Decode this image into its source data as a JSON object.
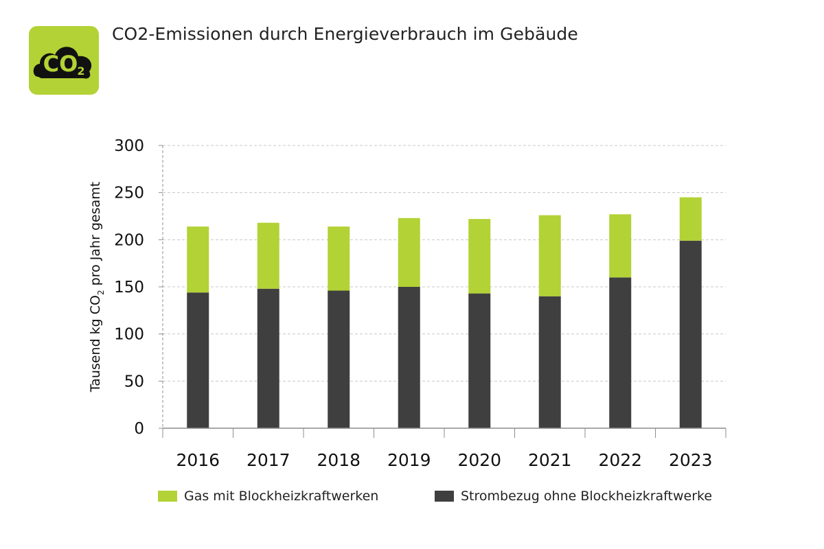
{
  "title": "CO2-Emissionen durch Energieverbrauch im Gebäude",
  "logo": {
    "text": "CO",
    "subscript": "2"
  },
  "colors": {
    "green": "#b2d235",
    "dark": "#3f3f3f",
    "grid": "#c8c8c8",
    "axis": "#8c8c8c"
  },
  "chart_data": {
    "type": "bar",
    "stacked": true,
    "categories": [
      "2016",
      "2017",
      "2018",
      "2019",
      "2020",
      "2021",
      "2022",
      "2023"
    ],
    "series": [
      {
        "name": "Strombezug ohne Blockheizkraftwerke",
        "color": "#3f3f3f",
        "values": [
          144,
          148,
          146,
          150,
          143,
          140,
          160,
          199
        ]
      },
      {
        "name": "Gas mit Blockheizkraftwerken",
        "color": "#b2d235",
        "values": [
          70,
          70,
          68,
          73,
          79,
          86,
          67,
          46
        ]
      }
    ],
    "ylabel": {
      "main": "Tausend kg CO",
      "sub": "2",
      "rest": " pro Jahr gesamt"
    },
    "ylim": [
      0,
      300
    ],
    "yticks": [
      0,
      50,
      100,
      150,
      200,
      250,
      300
    ],
    "grid": true,
    "legend_position": "bottom"
  },
  "legend": [
    {
      "label": "Gas mit Blockheizkraftwerken",
      "color": "#b2d235"
    },
    {
      "label": "Strombezug ohne Blockheizkraftwerke",
      "color": "#3f3f3f"
    }
  ]
}
